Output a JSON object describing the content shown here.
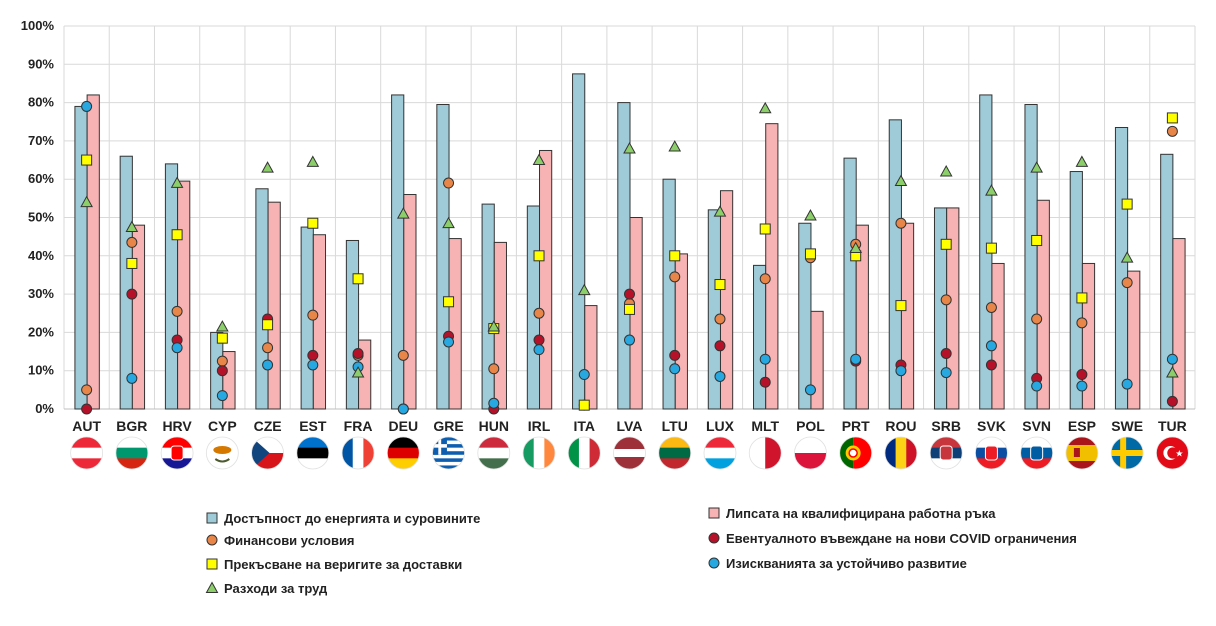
{
  "colors": {
    "energy": "#9fcbd8",
    "labour_shortage": "#f7b3b3",
    "financing": "#e8864a",
    "covid": "#b5122a",
    "supply": "#ffff00",
    "sustainability": "#27a8e0",
    "labour_cost": "#8ccf6a"
  },
  "chart_data": {
    "type": "bar",
    "ylim": [
      0,
      100
    ],
    "yticks": [
      "0%",
      "10%",
      "20%",
      "30%",
      "40%",
      "50%",
      "60%",
      "70%",
      "80%",
      "90%",
      "100%"
    ],
    "grid": "vertical",
    "legend_position": "bottom",
    "categories": [
      "AUT",
      "BGR",
      "HRV",
      "CYP",
      "CZE",
      "EST",
      "FRA",
      "DEU",
      "GRE",
      "HUN",
      "IRL",
      "ITA",
      "LVA",
      "LTU",
      "LUX",
      "MLT",
      "POL",
      "PRT",
      "ROU",
      "SRB",
      "SVK",
      "SVN",
      "ESP",
      "SWE",
      "TUR"
    ],
    "flags": [
      "austria-flag-icon",
      "bulgaria-flag-icon",
      "croatia-flag-icon",
      "cyprus-flag-icon",
      "czechia-flag-icon",
      "estonia-flag-icon",
      "france-flag-icon",
      "germany-flag-icon",
      "greece-flag-icon",
      "hungary-flag-icon",
      "ireland-flag-icon",
      "italy-flag-icon",
      "latvia-flag-icon",
      "lithuania-flag-icon",
      "luxembourg-flag-icon",
      "malta-flag-icon",
      "poland-flag-icon",
      "portugal-flag-icon",
      "romania-flag-icon",
      "serbia-flag-icon",
      "slovakia-flag-icon",
      "slovenia-flag-icon",
      "spain-flag-icon",
      "sweden-flag-icon",
      "turkey-flag-icon"
    ],
    "bar_series": [
      {
        "name": "Достъпност до енергията и суровините",
        "color_key": "energy",
        "values": [
          79,
          66,
          64,
          20,
          57.5,
          47.5,
          44,
          82,
          79.5,
          53.5,
          53,
          87.5,
          80,
          60,
          52,
          37.5,
          48.5,
          65.5,
          75.5,
          52.5,
          82,
          79.5,
          62,
          73.5,
          66.5
        ]
      },
      {
        "name": "Липсата на квалифицирана работна ръка",
        "color_key": "labour_shortage",
        "values": [
          82,
          48,
          59.5,
          15,
          54,
          45.5,
          18,
          56,
          44.5,
          43.5,
          67.5,
          27,
          50,
          40.5,
          57,
          74.5,
          25.5,
          48,
          48.5,
          52.5,
          38,
          54.5,
          38,
          36,
          44.5
        ]
      }
    ],
    "marker_series": [
      {
        "name": "Финансови условия",
        "marker": "circle",
        "color_key": "financing",
        "values": [
          5,
          43.5,
          25.5,
          12.5,
          16,
          24.5,
          14,
          14,
          59,
          10.5,
          25,
          null,
          27.5,
          34.5,
          23.5,
          34,
          39.5,
          43,
          48.5,
          28.5,
          26.5,
          23.5,
          22.5,
          33,
          72.5
        ]
      },
      {
        "name": "Евентуалното въвеждане на нови COVID ограничения",
        "marker": "circle",
        "color_key": "covid",
        "values": [
          0,
          30,
          18,
          10,
          23.5,
          14,
          14.5,
          0,
          19,
          0,
          18,
          1,
          30,
          14,
          16.5,
          7,
          null,
          12.5,
          11.5,
          14.5,
          11.5,
          8,
          9,
          null,
          2
        ]
      },
      {
        "name": "Прекъсване на веригите за доставки",
        "marker": "square",
        "color_key": "supply",
        "values": [
          65,
          38,
          45.5,
          18.5,
          22,
          48.5,
          34,
          null,
          28,
          21,
          40,
          1,
          26,
          40,
          32.5,
          47,
          40.5,
          40,
          27,
          43,
          42,
          44,
          29,
          53.5,
          76
        ]
      },
      {
        "name": "Изискванията за устойчиво развитие",
        "marker": "circle",
        "color_key": "sustainability",
        "values": [
          79,
          8,
          16,
          3.5,
          11.5,
          11.5,
          11,
          0,
          17.5,
          1.5,
          15.5,
          9,
          18,
          10.5,
          8.5,
          13,
          5,
          13,
          10,
          9.5,
          16.5,
          6,
          6,
          6.5,
          13
        ]
      },
      {
        "name": "Разходи за труд",
        "marker": "triangle",
        "color_key": "labour_cost",
        "values": [
          54,
          47.5,
          59,
          21.5,
          63,
          64.5,
          9.5,
          51,
          48.5,
          21.5,
          65,
          31,
          68,
          68.5,
          51.5,
          78.5,
          50.5,
          42,
          59.5,
          62,
          57,
          63,
          64.5,
          39.5,
          9.5
        ]
      }
    ],
    "legend": [
      {
        "name": "Достъпност до енергията и суровините",
        "shape": "square",
        "color_key": "energy"
      },
      {
        "name": "Финансови условия",
        "shape": "circle",
        "color_key": "financing"
      },
      {
        "name": "Прекъсване на веригите за доставки",
        "shape": "square",
        "color_key": "supply"
      },
      {
        "name": "Разходи за труд",
        "shape": "triangle",
        "color_key": "labour_cost"
      },
      {
        "name": "Липсата на квалифицирана работна ръка",
        "shape": "square",
        "color_key": "labour_shortage"
      },
      {
        "name": "Евентуалното въвеждане на нови COVID ограничения",
        "shape": "circle",
        "color_key": "covid"
      },
      {
        "name": "Изискванията за устойчиво развитие",
        "shape": "circle",
        "color_key": "sustainability"
      }
    ]
  }
}
